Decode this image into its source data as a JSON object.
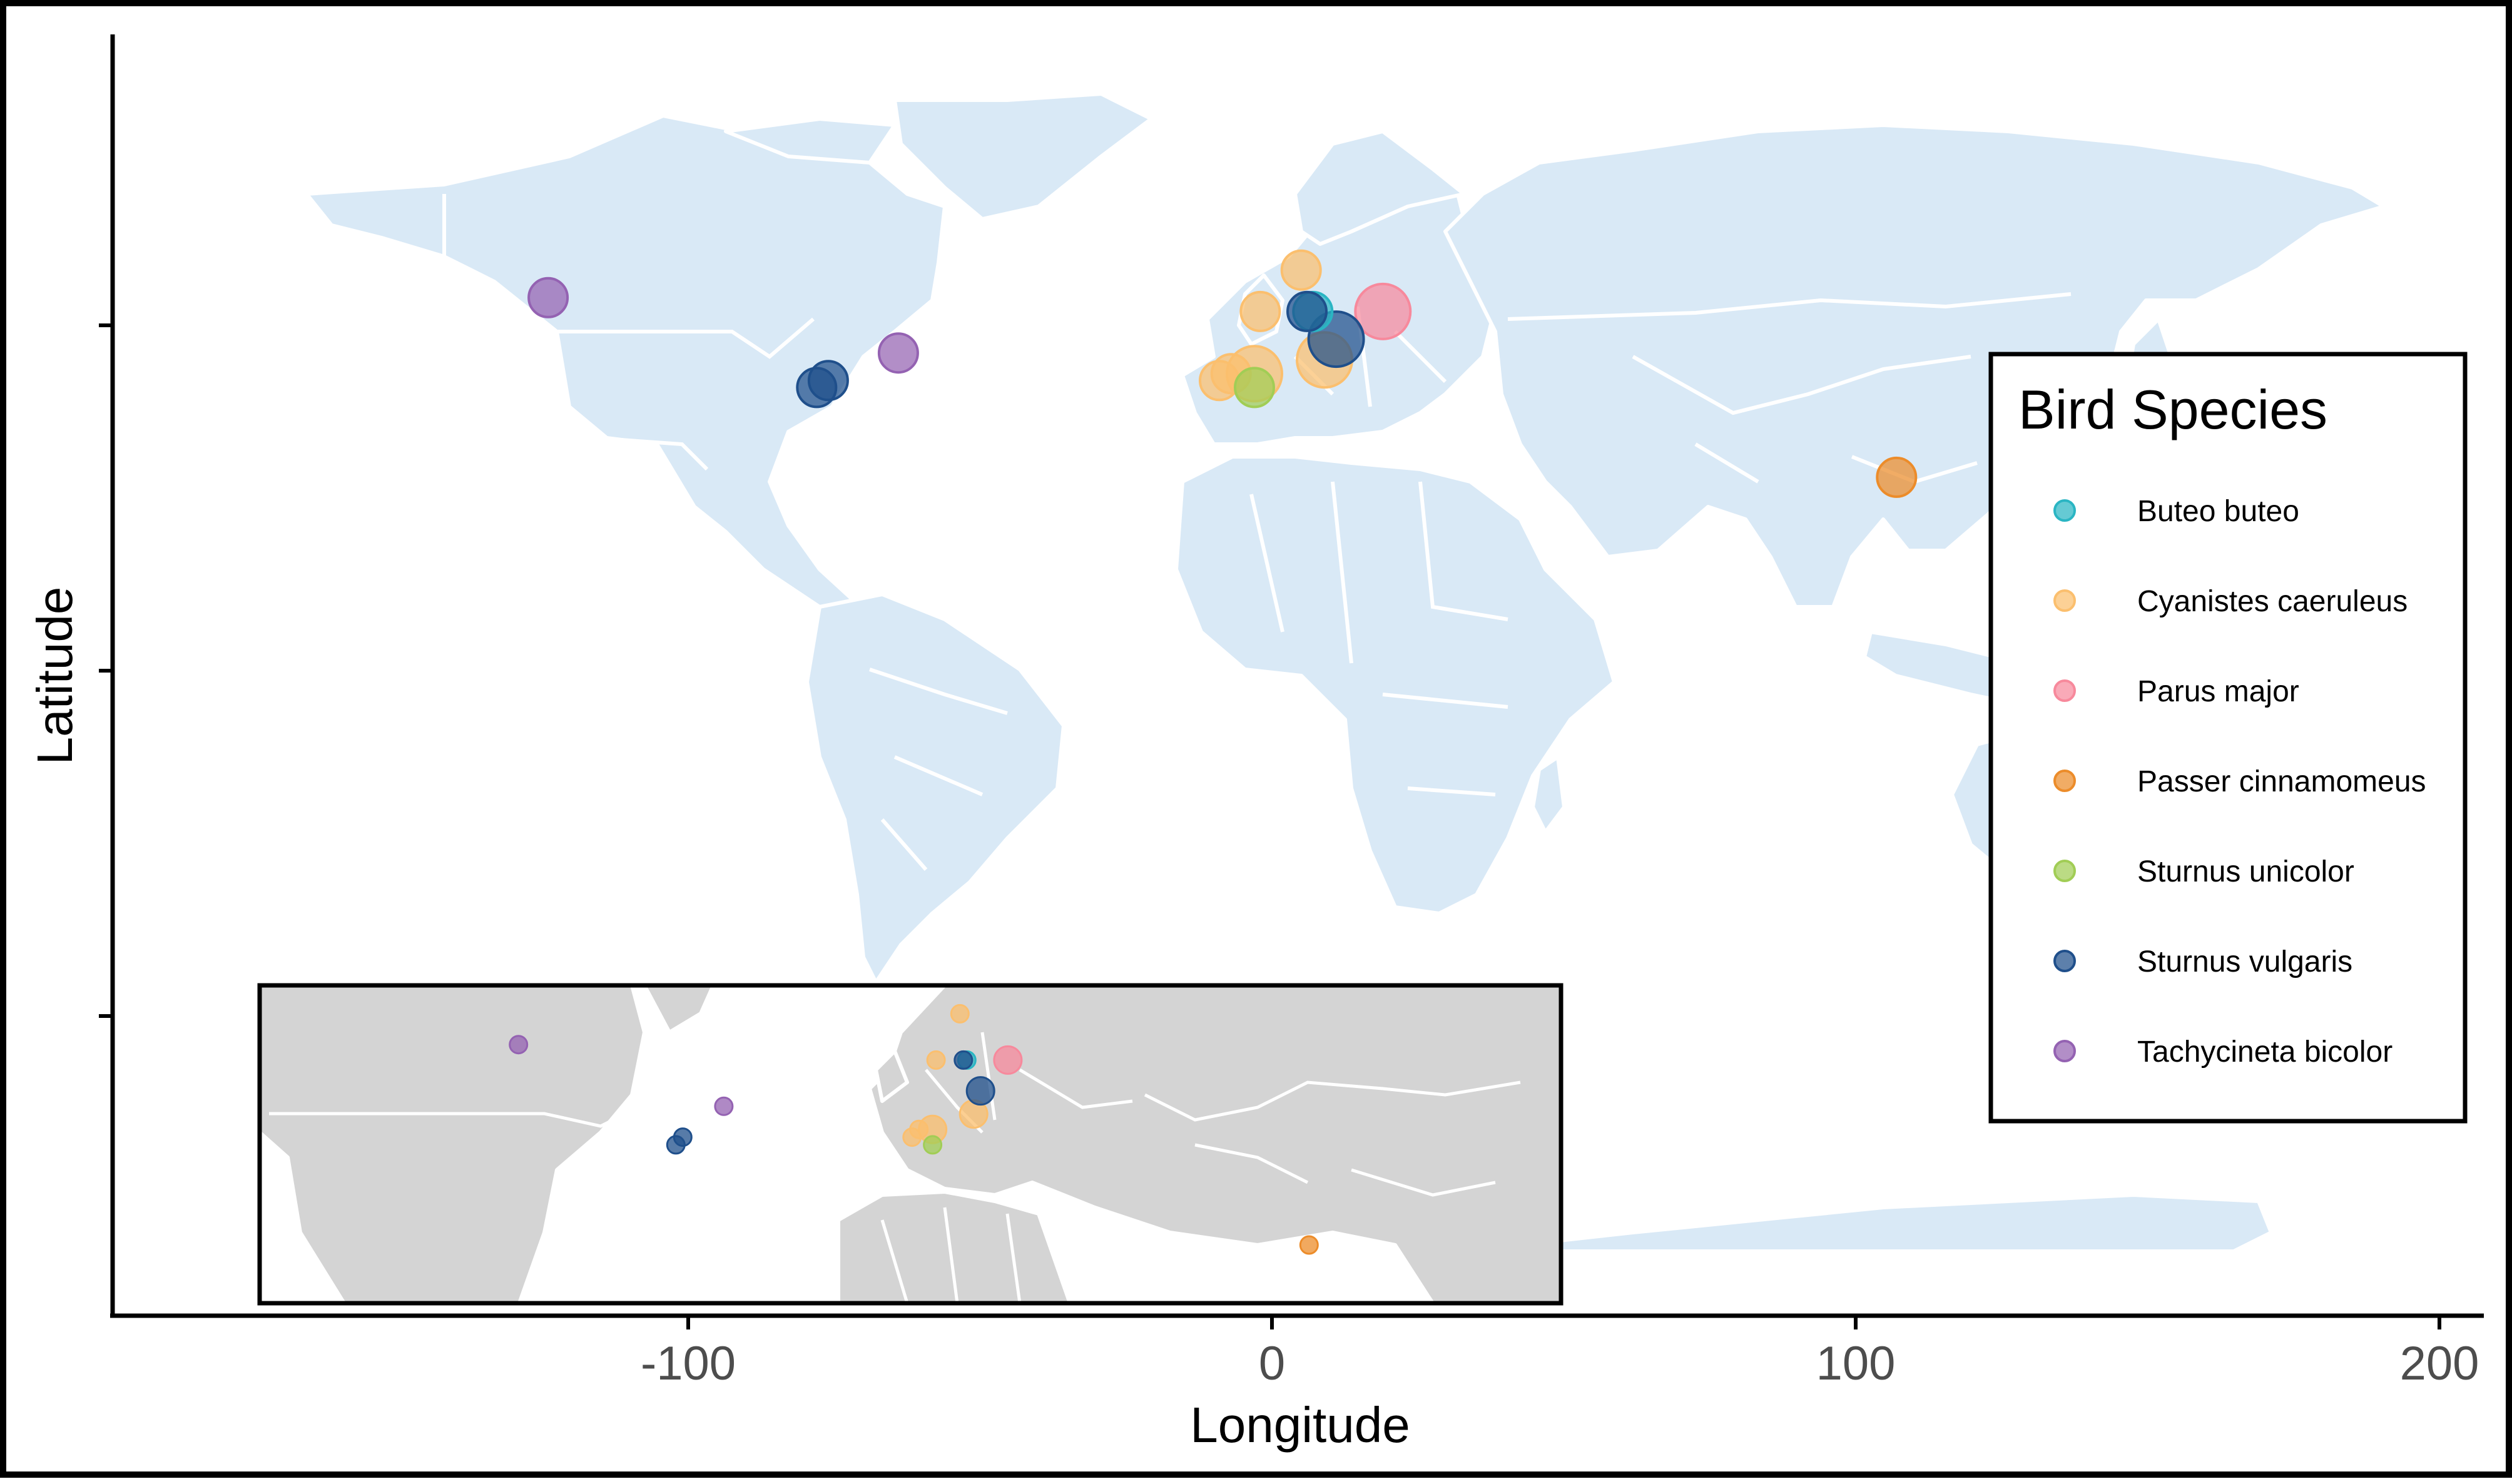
{
  "chart_data": {
    "type": "scatter",
    "title": "",
    "xlabel": "Longitude",
    "ylabel": "Latitude",
    "xlim": [
      -200,
      205
    ],
    "ylim": [
      -90,
      90
    ],
    "x_ticks": [
      -100,
      0,
      100,
      200
    ],
    "x_tick_labels": [
      "-100",
      "0",
      "100",
      "200"
    ],
    "y_ticks": [
      50,
      0,
      -50
    ],
    "grid": false,
    "legend": {
      "title": "Bird Species",
      "placement": "right"
    },
    "colors": {
      "land_main": "#d9e9f6",
      "land_inset": "#d4d4d4",
      "borders": "#ffffff"
    },
    "series": [
      {
        "name": "Buteo buteo",
        "color": "#2ab5c3",
        "points": [
          {
            "lon": 7,
            "lat": 52,
            "size": 2
          }
        ]
      },
      {
        "name": "Cyanistes caeruleus",
        "color": "#fbbf6e",
        "points": [
          {
            "lon": 5,
            "lat": 58,
            "size": 2
          },
          {
            "lon": -2,
            "lat": 52,
            "size": 2
          },
          {
            "lon": -9,
            "lat": 42,
            "size": 2
          },
          {
            "lon": -7,
            "lat": 43,
            "size": 2
          },
          {
            "lon": -3,
            "lat": 43,
            "size": 3
          },
          {
            "lon": 9,
            "lat": 45,
            "size": 3
          }
        ]
      },
      {
        "name": "Parus major",
        "color": "#f7899c",
        "points": [
          {
            "lon": 19,
            "lat": 52,
            "size": 3
          }
        ]
      },
      {
        "name": "Passer cinnamomeus",
        "color": "#ec8c2a",
        "points": [
          {
            "lon": 107,
            "lat": 28,
            "size": 2
          }
        ]
      },
      {
        "name": "Sturnus unicolor",
        "color": "#a1cd55",
        "points": [
          {
            "lon": -3,
            "lat": 41,
            "size": 2
          }
        ]
      },
      {
        "name": "Sturnus vulgaris",
        "color": "#1f4f8b",
        "points": [
          {
            "lon": 6,
            "lat": 52,
            "size": 2
          },
          {
            "lon": 11,
            "lat": 48,
            "size": 3
          },
          {
            "lon": -76,
            "lat": 42,
            "size": 2
          },
          {
            "lon": -78,
            "lat": 41,
            "size": 2
          }
        ]
      },
      {
        "name": "Tachycineta bicolor",
        "color": "#9462b2",
        "points": [
          {
            "lon": -124,
            "lat": 54,
            "size": 2
          },
          {
            "lon": -64,
            "lat": 46,
            "size": 2
          }
        ]
      }
    ]
  }
}
